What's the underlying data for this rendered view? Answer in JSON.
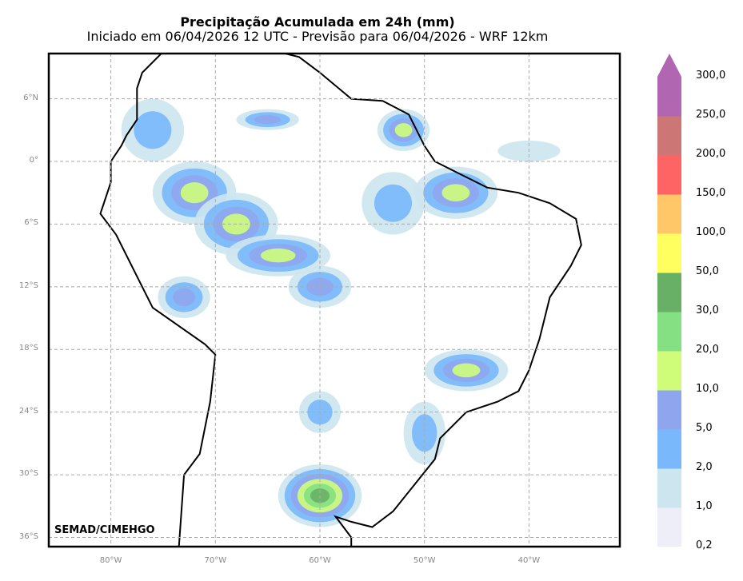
{
  "header": {
    "title": "Precipitação Acumulada em 24h (mm)",
    "subtitle": "Iniciado em 06/04/2026 12 UTC - Previsão para 06/04/2026 - WRF 12km"
  },
  "map": {
    "credit": "SEMAD/CIMEHGO",
    "lat_labels": [
      "6°N",
      "0°",
      "6°S",
      "12°S",
      "18°S",
      "24°S",
      "30°S",
      "36°S"
    ],
    "lon_labels": [
      "80°W",
      "70°W",
      "60°W",
      "50°W",
      "40°W"
    ]
  },
  "colorbar": {
    "labels": [
      "0,2",
      "1,0",
      "2,0",
      "5,0",
      "10,0",
      "20,0",
      "30,0",
      "50,0",
      "100,0",
      "150,0",
      "200,0",
      "250,0",
      "300,0"
    ],
    "colors": [
      "#eeeef9",
      "#cde5ef",
      "#78b8fb",
      "#8fa6ee",
      "#cffd7a",
      "#84e083",
      "#68b066",
      "#ffff60",
      "#ffc768",
      "#ff6464",
      "#cc7676",
      "#b066b0"
    ],
    "extend_color": "#b066b0"
  }
}
